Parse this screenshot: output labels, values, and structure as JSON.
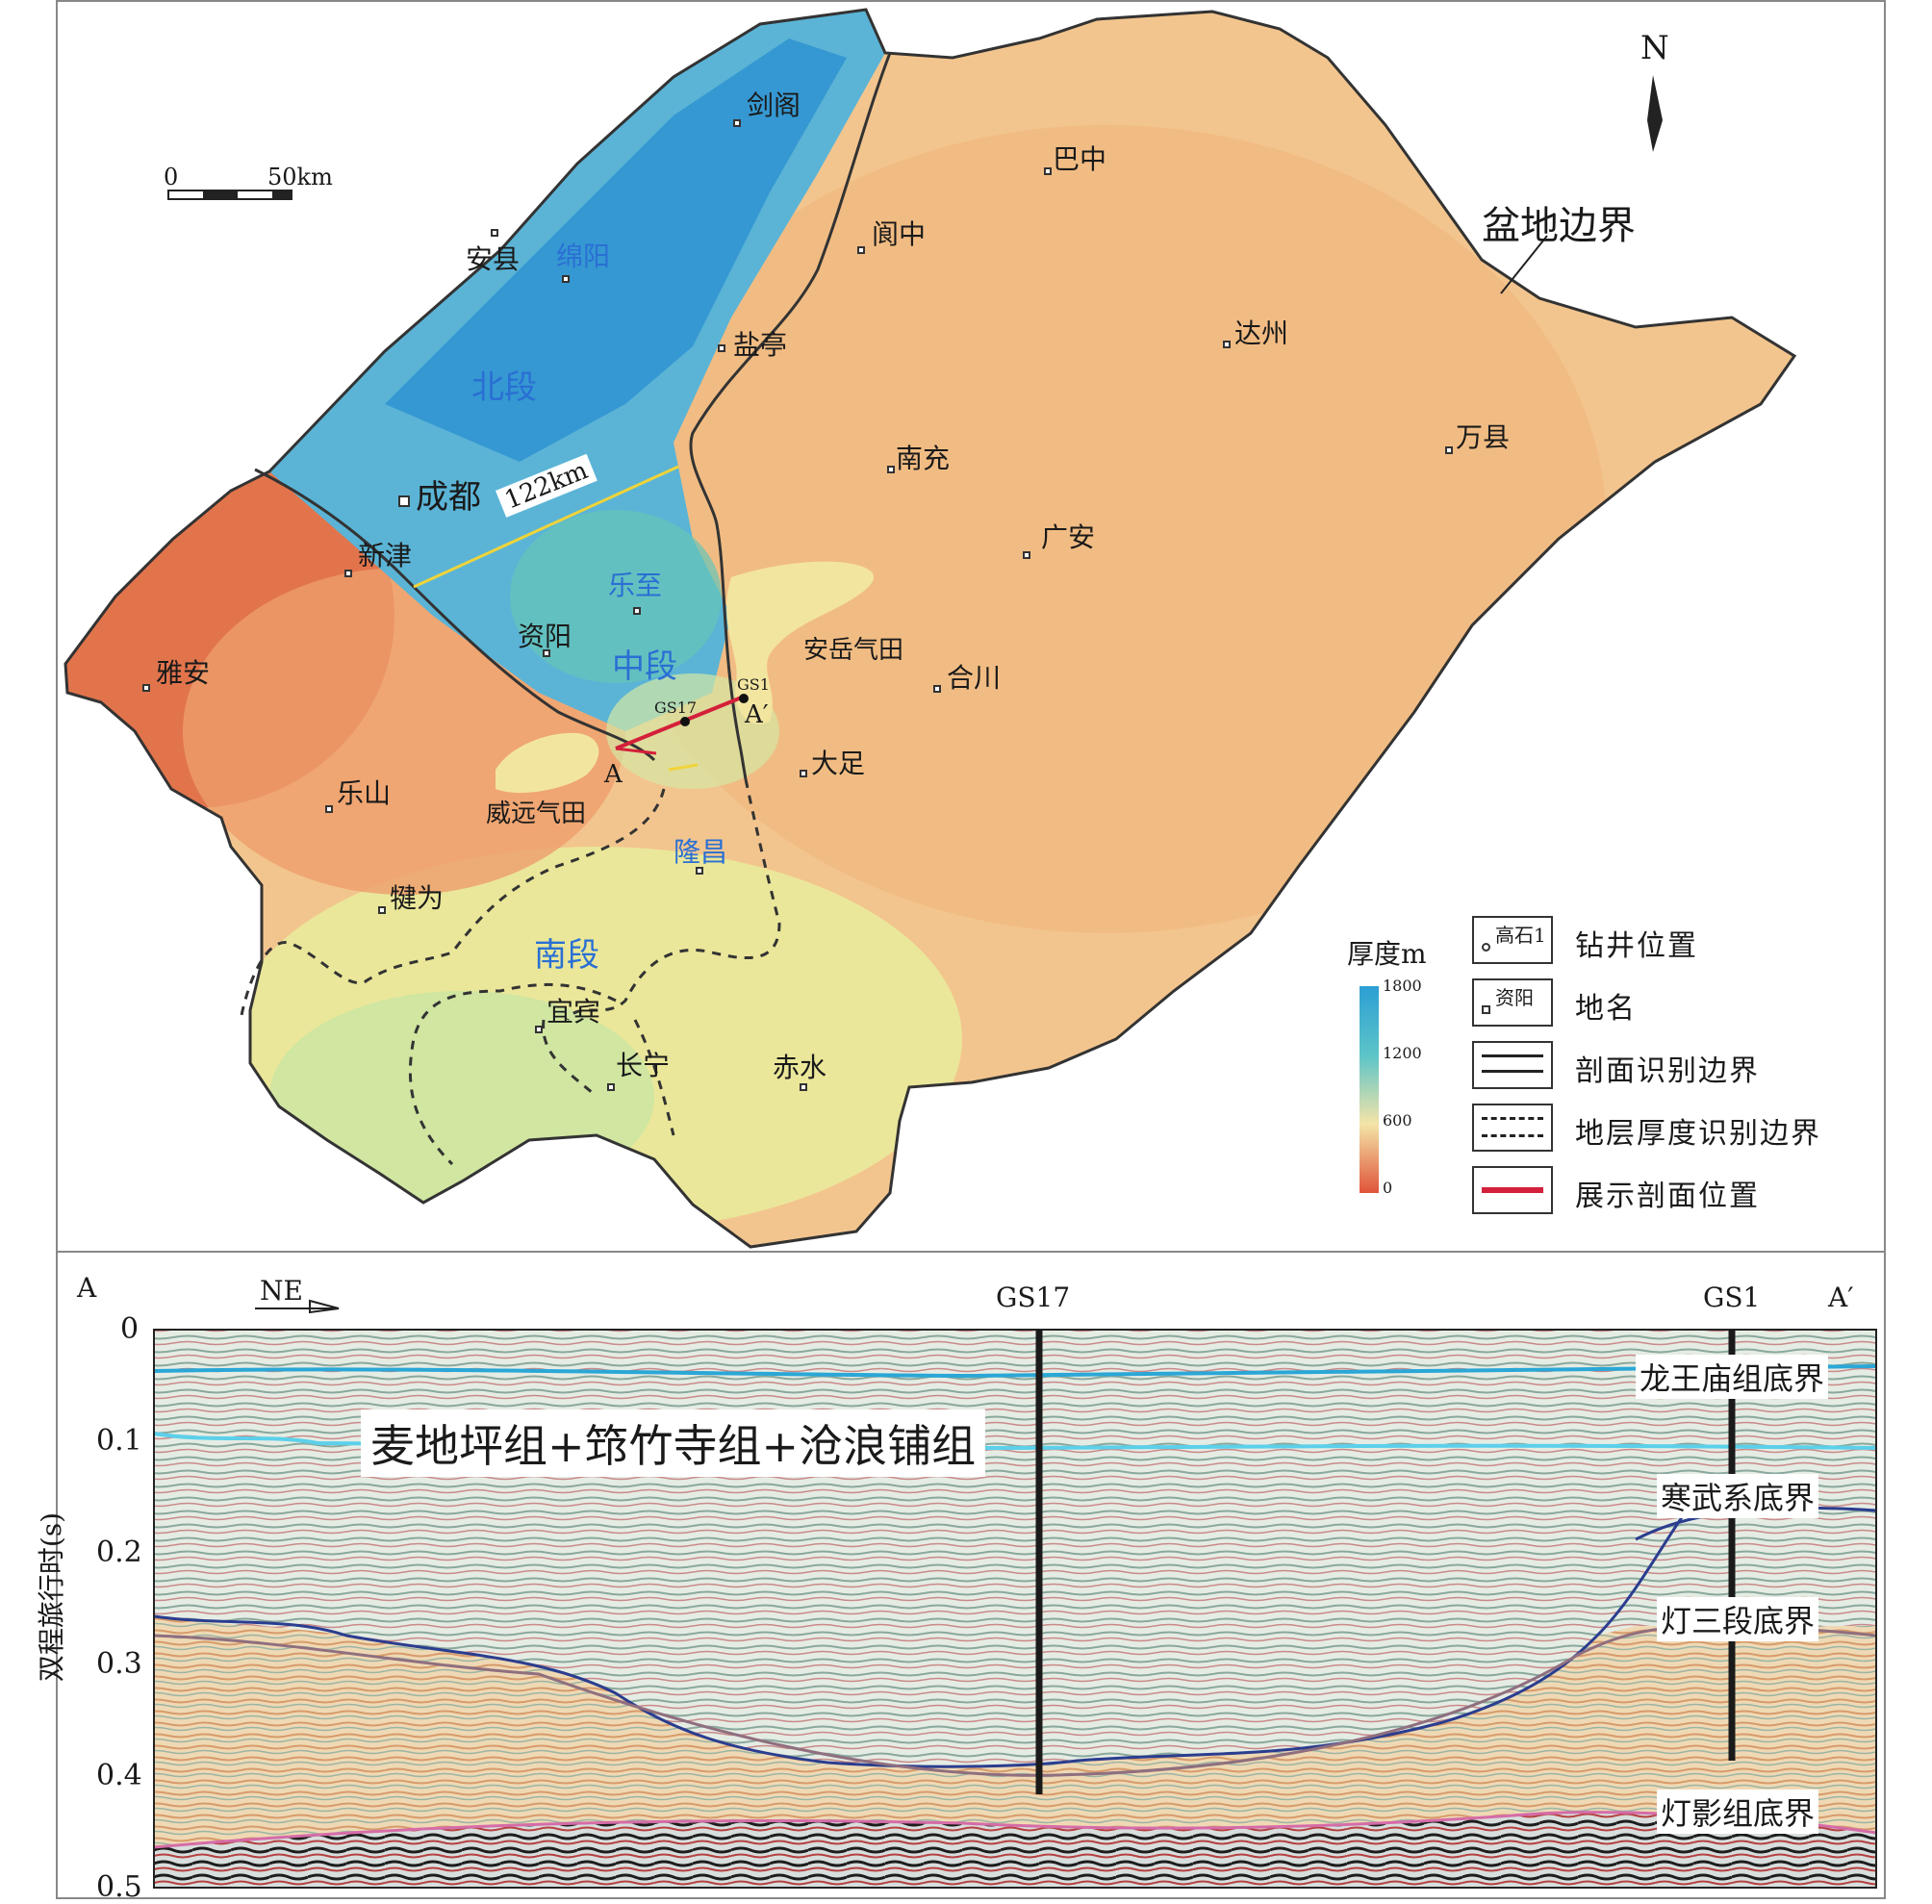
{
  "map": {
    "north_arrow": "N",
    "scale": {
      "zero": "0",
      "distance": "50km"
    },
    "boundary_callout": "盆地边界",
    "distance_label": "122km",
    "cities": [
      {
        "name": "剑阁"
      },
      {
        "name": "巴中"
      },
      {
        "name": "阆中"
      },
      {
        "name": "安县"
      },
      {
        "name": "绵阳"
      },
      {
        "name": "盐亭"
      },
      {
        "name": "达州"
      },
      {
        "name": "万县"
      },
      {
        "name": "南充"
      },
      {
        "name": "成都"
      },
      {
        "name": "广安"
      },
      {
        "name": "新津"
      },
      {
        "name": "乐至"
      },
      {
        "name": "资阳"
      },
      {
        "name": "雅安"
      },
      {
        "name": "合川"
      },
      {
        "name": "大足"
      },
      {
        "name": "乐山"
      },
      {
        "name": "隆昌"
      },
      {
        "name": "犍为"
      },
      {
        "name": "宜宾"
      },
      {
        "name": "长宁"
      },
      {
        "name": "赤水"
      }
    ],
    "segment_labels": [
      "北段",
      "中段",
      "南段"
    ],
    "gas_fields": [
      "安岳气田",
      "威远气田"
    ],
    "wells": [
      "GS17",
      "GS1"
    ],
    "profile_ends": [
      "A",
      "A′"
    ],
    "colorbar": {
      "title": "厚度m",
      "ticks": [
        "1800",
        "1200",
        "600",
        "0"
      ],
      "colors": [
        "#2c9fd4",
        "#5cc4c8",
        "#f4e4a8",
        "#e0543a"
      ]
    },
    "legend": [
      {
        "sample": "高石1",
        "label": "钻井位置"
      },
      {
        "sample": "资阳",
        "label": "地名"
      },
      {
        "sample": "",
        "label": "剖面识别边界"
      },
      {
        "sample": "",
        "label": "地层厚度识别边界"
      },
      {
        "sample": "",
        "label": "展示剖面位置"
      }
    ]
  },
  "section": {
    "end_left": "A",
    "direction": "NE",
    "wells": [
      "GS17",
      "GS1"
    ],
    "end_right": "A′",
    "y_axis_label": "双程旅行时(s)",
    "y_ticks": [
      "0",
      "0.1",
      "0.2",
      "0.3",
      "0.4",
      "0.5"
    ],
    "formation_label": "麦地坪组+筇竹寺组+沧浪铺组",
    "horizon_labels": [
      "龙王庙组底界",
      "寒武系底界",
      "灯三段底界",
      "灯影组底界"
    ]
  }
}
